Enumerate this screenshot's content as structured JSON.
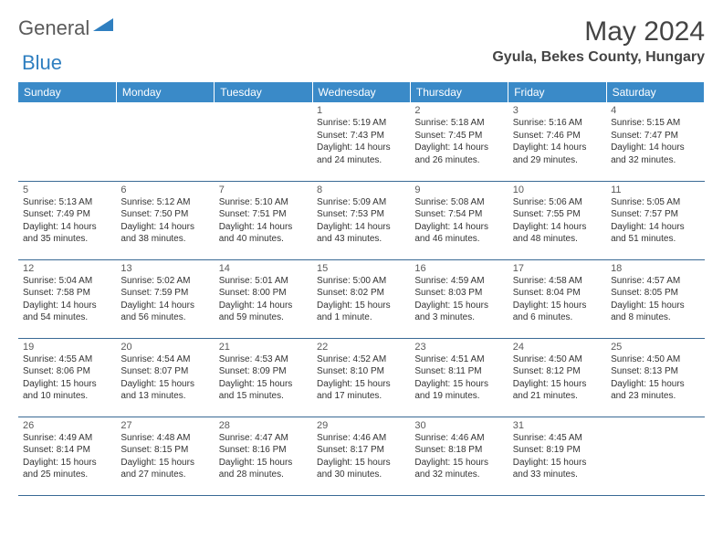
{
  "brand": {
    "text1": "General",
    "text2": "Blue"
  },
  "title": "May 2024",
  "location": "Gyula, Bekes County, Hungary",
  "header_bg": "#3a8ac8",
  "day_headers": [
    "Sunday",
    "Monday",
    "Tuesday",
    "Wednesday",
    "Thursday",
    "Friday",
    "Saturday"
  ],
  "weeks": [
    [
      null,
      null,
      null,
      {
        "n": "1",
        "sr": "5:19 AM",
        "ss": "7:43 PM",
        "dl": "14 hours and 24 minutes."
      },
      {
        "n": "2",
        "sr": "5:18 AM",
        "ss": "7:45 PM",
        "dl": "14 hours and 26 minutes."
      },
      {
        "n": "3",
        "sr": "5:16 AM",
        "ss": "7:46 PM",
        "dl": "14 hours and 29 minutes."
      },
      {
        "n": "4",
        "sr": "5:15 AM",
        "ss": "7:47 PM",
        "dl": "14 hours and 32 minutes."
      }
    ],
    [
      {
        "n": "5",
        "sr": "5:13 AM",
        "ss": "7:49 PM",
        "dl": "14 hours and 35 minutes."
      },
      {
        "n": "6",
        "sr": "5:12 AM",
        "ss": "7:50 PM",
        "dl": "14 hours and 38 minutes."
      },
      {
        "n": "7",
        "sr": "5:10 AM",
        "ss": "7:51 PM",
        "dl": "14 hours and 40 minutes."
      },
      {
        "n": "8",
        "sr": "5:09 AM",
        "ss": "7:53 PM",
        "dl": "14 hours and 43 minutes."
      },
      {
        "n": "9",
        "sr": "5:08 AM",
        "ss": "7:54 PM",
        "dl": "14 hours and 46 minutes."
      },
      {
        "n": "10",
        "sr": "5:06 AM",
        "ss": "7:55 PM",
        "dl": "14 hours and 48 minutes."
      },
      {
        "n": "11",
        "sr": "5:05 AM",
        "ss": "7:57 PM",
        "dl": "14 hours and 51 minutes."
      }
    ],
    [
      {
        "n": "12",
        "sr": "5:04 AM",
        "ss": "7:58 PM",
        "dl": "14 hours and 54 minutes."
      },
      {
        "n": "13",
        "sr": "5:02 AM",
        "ss": "7:59 PM",
        "dl": "14 hours and 56 minutes."
      },
      {
        "n": "14",
        "sr": "5:01 AM",
        "ss": "8:00 PM",
        "dl": "14 hours and 59 minutes."
      },
      {
        "n": "15",
        "sr": "5:00 AM",
        "ss": "8:02 PM",
        "dl": "15 hours and 1 minute."
      },
      {
        "n": "16",
        "sr": "4:59 AM",
        "ss": "8:03 PM",
        "dl": "15 hours and 3 minutes."
      },
      {
        "n": "17",
        "sr": "4:58 AM",
        "ss": "8:04 PM",
        "dl": "15 hours and 6 minutes."
      },
      {
        "n": "18",
        "sr": "4:57 AM",
        "ss": "8:05 PM",
        "dl": "15 hours and 8 minutes."
      }
    ],
    [
      {
        "n": "19",
        "sr": "4:55 AM",
        "ss": "8:06 PM",
        "dl": "15 hours and 10 minutes."
      },
      {
        "n": "20",
        "sr": "4:54 AM",
        "ss": "8:07 PM",
        "dl": "15 hours and 13 minutes."
      },
      {
        "n": "21",
        "sr": "4:53 AM",
        "ss": "8:09 PM",
        "dl": "15 hours and 15 minutes."
      },
      {
        "n": "22",
        "sr": "4:52 AM",
        "ss": "8:10 PM",
        "dl": "15 hours and 17 minutes."
      },
      {
        "n": "23",
        "sr": "4:51 AM",
        "ss": "8:11 PM",
        "dl": "15 hours and 19 minutes."
      },
      {
        "n": "24",
        "sr": "4:50 AM",
        "ss": "8:12 PM",
        "dl": "15 hours and 21 minutes."
      },
      {
        "n": "25",
        "sr": "4:50 AM",
        "ss": "8:13 PM",
        "dl": "15 hours and 23 minutes."
      }
    ],
    [
      {
        "n": "26",
        "sr": "4:49 AM",
        "ss": "8:14 PM",
        "dl": "15 hours and 25 minutes."
      },
      {
        "n": "27",
        "sr": "4:48 AM",
        "ss": "8:15 PM",
        "dl": "15 hours and 27 minutes."
      },
      {
        "n": "28",
        "sr": "4:47 AM",
        "ss": "8:16 PM",
        "dl": "15 hours and 28 minutes."
      },
      {
        "n": "29",
        "sr": "4:46 AM",
        "ss": "8:17 PM",
        "dl": "15 hours and 30 minutes."
      },
      {
        "n": "30",
        "sr": "4:46 AM",
        "ss": "8:18 PM",
        "dl": "15 hours and 32 minutes."
      },
      {
        "n": "31",
        "sr": "4:45 AM",
        "ss": "8:19 PM",
        "dl": "15 hours and 33 minutes."
      },
      null
    ]
  ],
  "labels": {
    "sunrise": "Sunrise: ",
    "sunset": "Sunset: ",
    "daylight": "Daylight: "
  }
}
